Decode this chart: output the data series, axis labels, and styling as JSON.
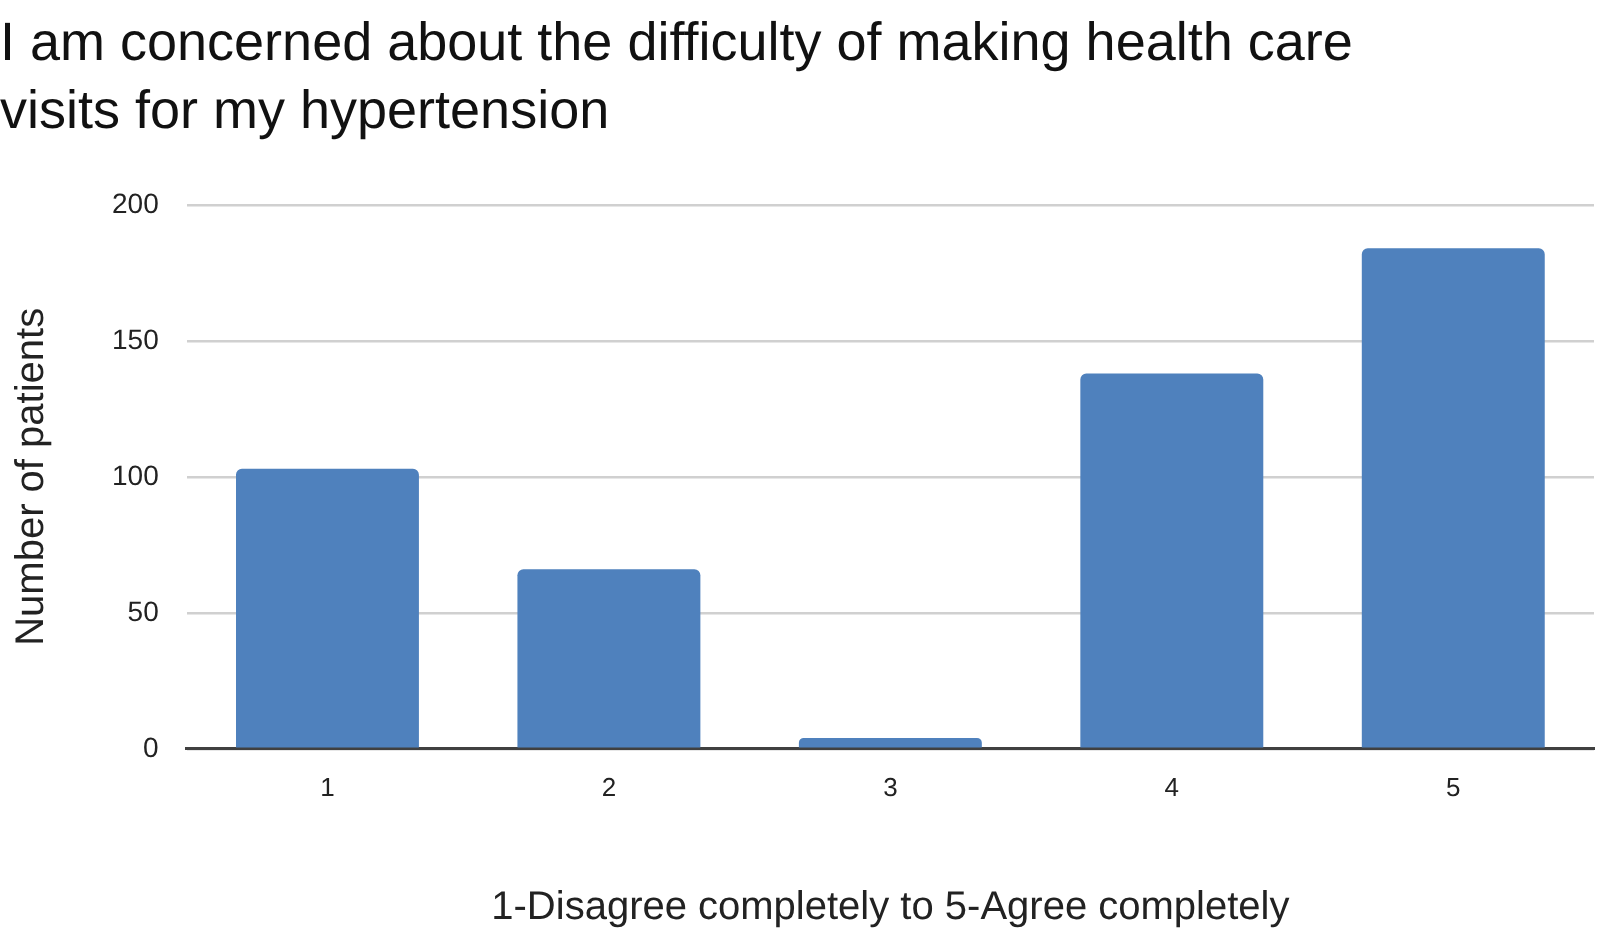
{
  "chart_data": {
    "type": "bar",
    "title": "I am concerned about the difficulty of making health care visits for my hypertension",
    "xlabel": "1-Disagree completely to 5-Agree completely",
    "ylabel": "Number of patients",
    "categories": [
      "1",
      "2",
      "3",
      "4",
      "5"
    ],
    "values": [
      103,
      66,
      4,
      138,
      184
    ],
    "color": "#4f81bd",
    "ylim": [
      0,
      200
    ],
    "yticks": [
      0,
      50,
      100,
      150,
      200
    ],
    "grid": "y"
  }
}
